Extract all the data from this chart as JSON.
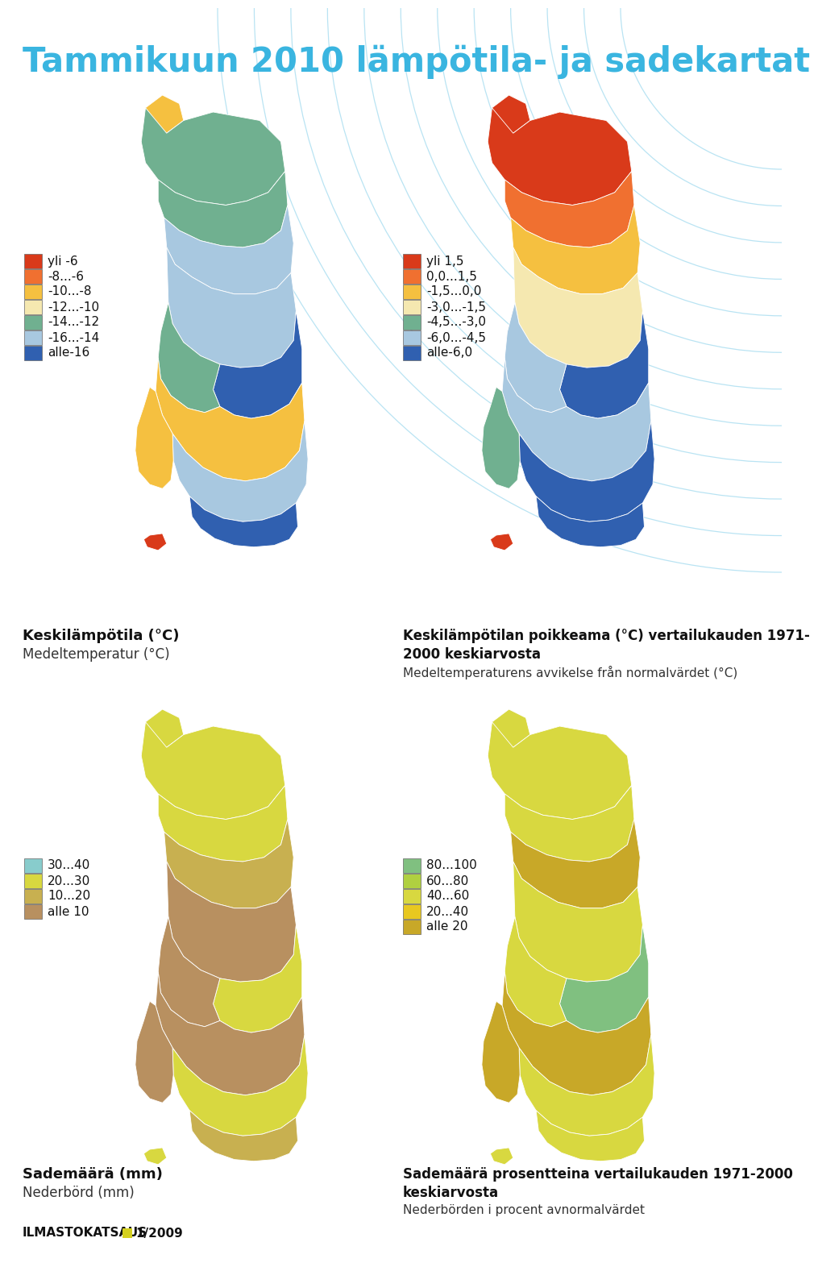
{
  "title": "Tammikuun 2010 lämpötila- ja sadekartat",
  "title_color": "#3ab5e0",
  "background_color": "#ffffff",
  "legend1_labels": [
    "yli -6",
    "-8...-6",
    "-10...-8",
    "-12...-10",
    "-14...-12",
    "-16...-14",
    "alle-16"
  ],
  "legend1_colors": [
    "#d93a1a",
    "#f07030",
    "#f5c040",
    "#f5e8b0",
    "#70b090",
    "#a8c8e0",
    "#3060b0"
  ],
  "legend2_labels": [
    "yli 1,5",
    "0,0...1,5",
    "-1,5...0,0",
    "-3,0...-1,5",
    "-4,5...-3,0",
    "-6,0...-4,5",
    "alle-6,0"
  ],
  "legend2_colors": [
    "#d93a1a",
    "#f07030",
    "#f5c040",
    "#f5e8b0",
    "#70b090",
    "#a8c8e0",
    "#3060b0"
  ],
  "legend3_labels": [
    "30...40",
    "20...30",
    "10...20",
    "alle 10"
  ],
  "legend3_colors": [
    "#88cccc",
    "#d8d840",
    "#c8b050",
    "#b89060"
  ],
  "legend4_labels": [
    "80...100",
    "60...80",
    "40...60",
    "20...40",
    "alle 20"
  ],
  "legend4_colors": [
    "#80c080",
    "#b0d040",
    "#d8d840",
    "#e8c820",
    "#c8a828"
  ],
  "map1_label1": "Keskilämpötila (°C)",
  "map1_label2": "Medeltemperatur (°C)",
  "map2_label1": "Keskilämpötilan poikkeama (°C) vertailukauden 1971-",
  "map2_label2": "2000 keskiarvosta",
  "map2_label3": "Medeltemperaturens avvikelse från normalvärdet (°C)",
  "map3_label1": "Sademäärä (mm)",
  "map3_label2": "Nederbörd (mm)",
  "map4_label1": "Sademäärä prosentteina vertailukauden 1971-2000",
  "map4_label2": "keskiarvosta",
  "map4_label3": "Nederbörden i procent avnormalvärdet",
  "footer": "ILMASTOKATSAUS",
  "footer2": "1/2009",
  "footer_square_color": "#d4d020"
}
